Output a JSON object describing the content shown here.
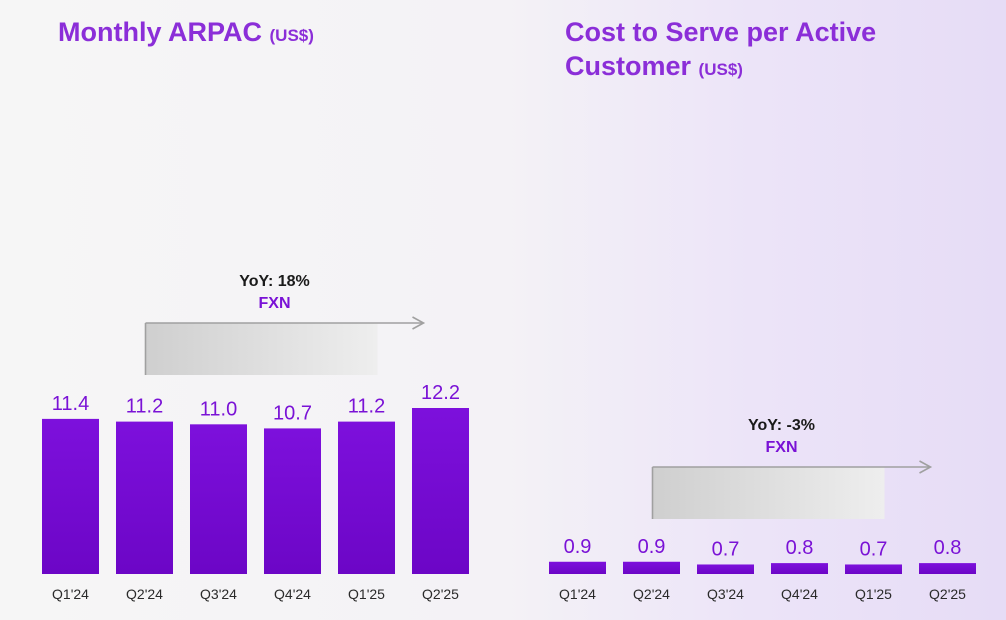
{
  "colors": {
    "title": "#8b2ed8",
    "bar_top": "#7d10dc",
    "bar_bottom": "#6c06c6",
    "value_label": "#7a12d6",
    "arrow": "#a0a0a0"
  },
  "chart_data": [
    {
      "type": "bar",
      "title": "Monthly ARPAC",
      "title_unit": "(US$)",
      "categories": [
        "Q1'24",
        "Q2'24",
        "Q3'24",
        "Q4'24",
        "Q1'25",
        "Q2'25"
      ],
      "values": [
        11.4,
        11.2,
        11.0,
        10.7,
        11.2,
        12.2
      ],
      "value_labels": [
        "11.4",
        "11.2",
        "11.0",
        "10.7",
        "11.2",
        "12.2"
      ],
      "ylim": [
        0,
        12.2
      ],
      "grid": false,
      "annotation": {
        "yoy": "YoY: 18%",
        "fxn": "FXN",
        "from_category": "Q2'24",
        "to_category": "Q2'25"
      }
    },
    {
      "type": "bar",
      "title": "Cost to Serve per Active Customer",
      "title_unit": "(US$)",
      "categories": [
        "Q1'24",
        "Q2'24",
        "Q3'24",
        "Q4'24",
        "Q1'25",
        "Q2'25"
      ],
      "values": [
        0.9,
        0.9,
        0.7,
        0.8,
        0.7,
        0.8
      ],
      "value_labels": [
        "0.9",
        "0.9",
        "0.7",
        "0.8",
        "0.7",
        "0.8"
      ],
      "ylim": [
        0,
        12.2
      ],
      "grid": false,
      "annotation": {
        "yoy": "YoY: -3%",
        "fxn": "FXN",
        "from_category": "Q2'24",
        "to_category": "Q2'25"
      }
    }
  ]
}
